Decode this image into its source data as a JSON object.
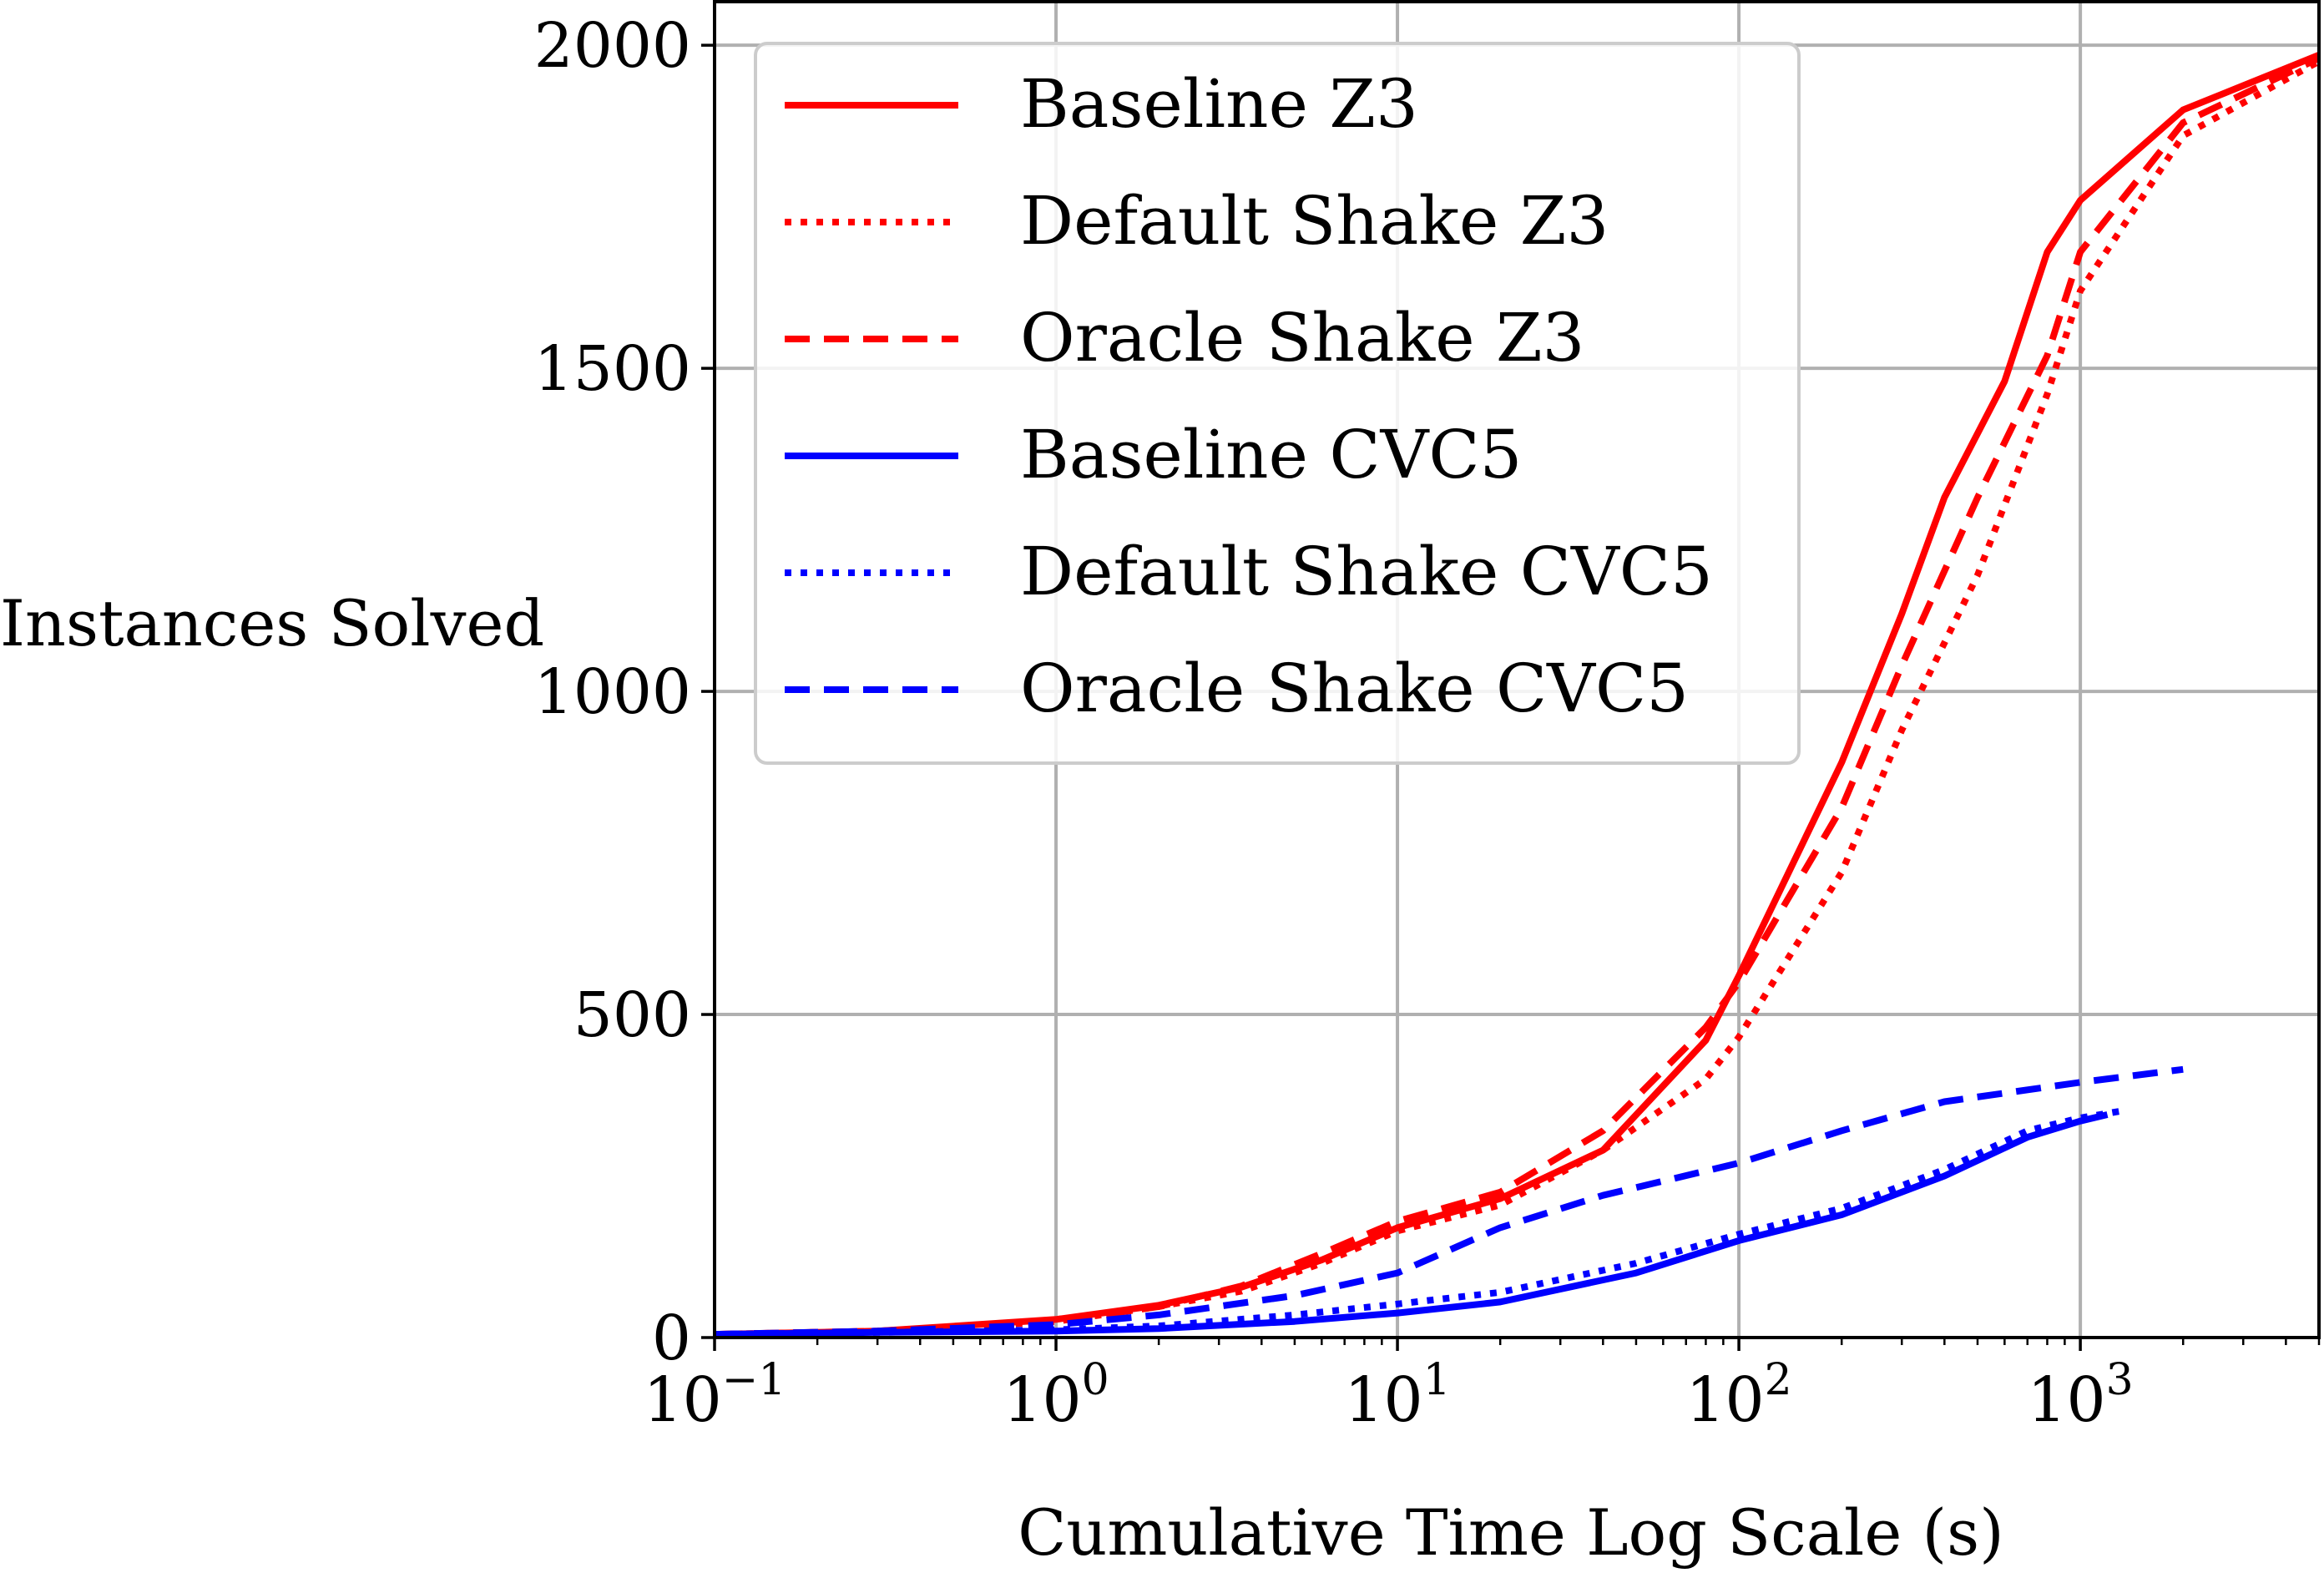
{
  "chart_data": {
    "type": "line",
    "xlabel": "Cumulative Time Log Scale (s)",
    "ylabel": "Instances Solved",
    "xscale": "log",
    "xlim": [
      0.1,
      5000
    ],
    "ylim": [
      0,
      2070
    ],
    "grid": true,
    "legend_position": "top-left",
    "x_ticks": [
      {
        "value": 0.1,
        "base": "10",
        "exp": "−1"
      },
      {
        "value": 1,
        "base": "10",
        "exp": "0"
      },
      {
        "value": 10,
        "base": "10",
        "exp": "1"
      },
      {
        "value": 100,
        "base": "10",
        "exp": "2"
      },
      {
        "value": 1000,
        "base": "10",
        "exp": "3"
      }
    ],
    "y_ticks": [
      {
        "value": 0,
        "label": "0"
      },
      {
        "value": 500,
        "label": "500"
      },
      {
        "value": 1000,
        "label": "1000"
      },
      {
        "value": 1500,
        "label": "1500"
      },
      {
        "value": 2000,
        "label": "2000"
      }
    ],
    "series": [
      {
        "name": "Baseline Z3",
        "color": "#ff0000",
        "style": "solid",
        "points": [
          [
            0.1,
            5
          ],
          [
            0.3,
            10
          ],
          [
            1,
            28
          ],
          [
            2,
            50
          ],
          [
            3.5,
            78
          ],
          [
            6,
            120
          ],
          [
            10,
            170
          ],
          [
            20,
            215
          ],
          [
            40,
            290
          ],
          [
            80,
            460
          ],
          [
            100,
            560
          ],
          [
            200,
            890
          ],
          [
            300,
            1120
          ],
          [
            400,
            1300
          ],
          [
            600,
            1480
          ],
          [
            800,
            1680
          ],
          [
            1000,
            1760
          ],
          [
            2000,
            1900
          ],
          [
            5000,
            1985
          ]
        ]
      },
      {
        "name": "Default Shake Z3",
        "color": "#ff0000",
        "style": "dotted",
        "points": [
          [
            0.1,
            5
          ],
          [
            0.3,
            10
          ],
          [
            1,
            25
          ],
          [
            2,
            48
          ],
          [
            3.5,
            72
          ],
          [
            6,
            115
          ],
          [
            10,
            165
          ],
          [
            20,
            205
          ],
          [
            40,
            290
          ],
          [
            80,
            400
          ],
          [
            100,
            465
          ],
          [
            200,
            720
          ],
          [
            300,
            940
          ],
          [
            500,
            1180
          ],
          [
            800,
            1460
          ],
          [
            1000,
            1620
          ],
          [
            2000,
            1860
          ],
          [
            5000,
            1975
          ]
        ]
      },
      {
        "name": "Oracle Shake Z3",
        "color": "#ff0000",
        "style": "dashed",
        "points": [
          [
            0.1,
            5
          ],
          [
            0.3,
            10
          ],
          [
            1,
            25
          ],
          [
            2,
            48
          ],
          [
            3.5,
            80
          ],
          [
            6,
            130
          ],
          [
            10,
            180
          ],
          [
            20,
            225
          ],
          [
            40,
            320
          ],
          [
            80,
            480
          ],
          [
            100,
            550
          ],
          [
            200,
            820
          ],
          [
            300,
            1040
          ],
          [
            500,
            1300
          ],
          [
            800,
            1520
          ],
          [
            1000,
            1680
          ],
          [
            2000,
            1880
          ],
          [
            5000,
            1980
          ]
        ]
      },
      {
        "name": "Baseline CVC5",
        "color": "#0000ff",
        "style": "solid",
        "points": [
          [
            0.1,
            5
          ],
          [
            0.3,
            8
          ],
          [
            1,
            10
          ],
          [
            2,
            14
          ],
          [
            5,
            25
          ],
          [
            10,
            38
          ],
          [
            20,
            55
          ],
          [
            50,
            100
          ],
          [
            100,
            150
          ],
          [
            200,
            190
          ],
          [
            400,
            250
          ],
          [
            700,
            310
          ],
          [
            1000,
            335
          ],
          [
            1200,
            345
          ]
        ]
      },
      {
        "name": "Default Shake CVC5",
        "color": "#0000ff",
        "style": "dotted",
        "points": [
          [
            0.1,
            5
          ],
          [
            0.3,
            8
          ],
          [
            1,
            12
          ],
          [
            2,
            18
          ],
          [
            5,
            35
          ],
          [
            10,
            52
          ],
          [
            20,
            70
          ],
          [
            50,
            115
          ],
          [
            100,
            160
          ],
          [
            200,
            200
          ],
          [
            400,
            260
          ],
          [
            700,
            320
          ],
          [
            1000,
            340
          ],
          [
            1300,
            350
          ]
        ]
      },
      {
        "name": "Oracle Shake CVC5",
        "color": "#0000ff",
        "style": "dashed",
        "points": [
          [
            0.1,
            5
          ],
          [
            0.3,
            10
          ],
          [
            1,
            20
          ],
          [
            2,
            35
          ],
          [
            5,
            65
          ],
          [
            10,
            100
          ],
          [
            20,
            170
          ],
          [
            40,
            220
          ],
          [
            100,
            270
          ],
          [
            200,
            320
          ],
          [
            400,
            365
          ],
          [
            1000,
            395
          ],
          [
            2000,
            415
          ]
        ]
      }
    ]
  }
}
